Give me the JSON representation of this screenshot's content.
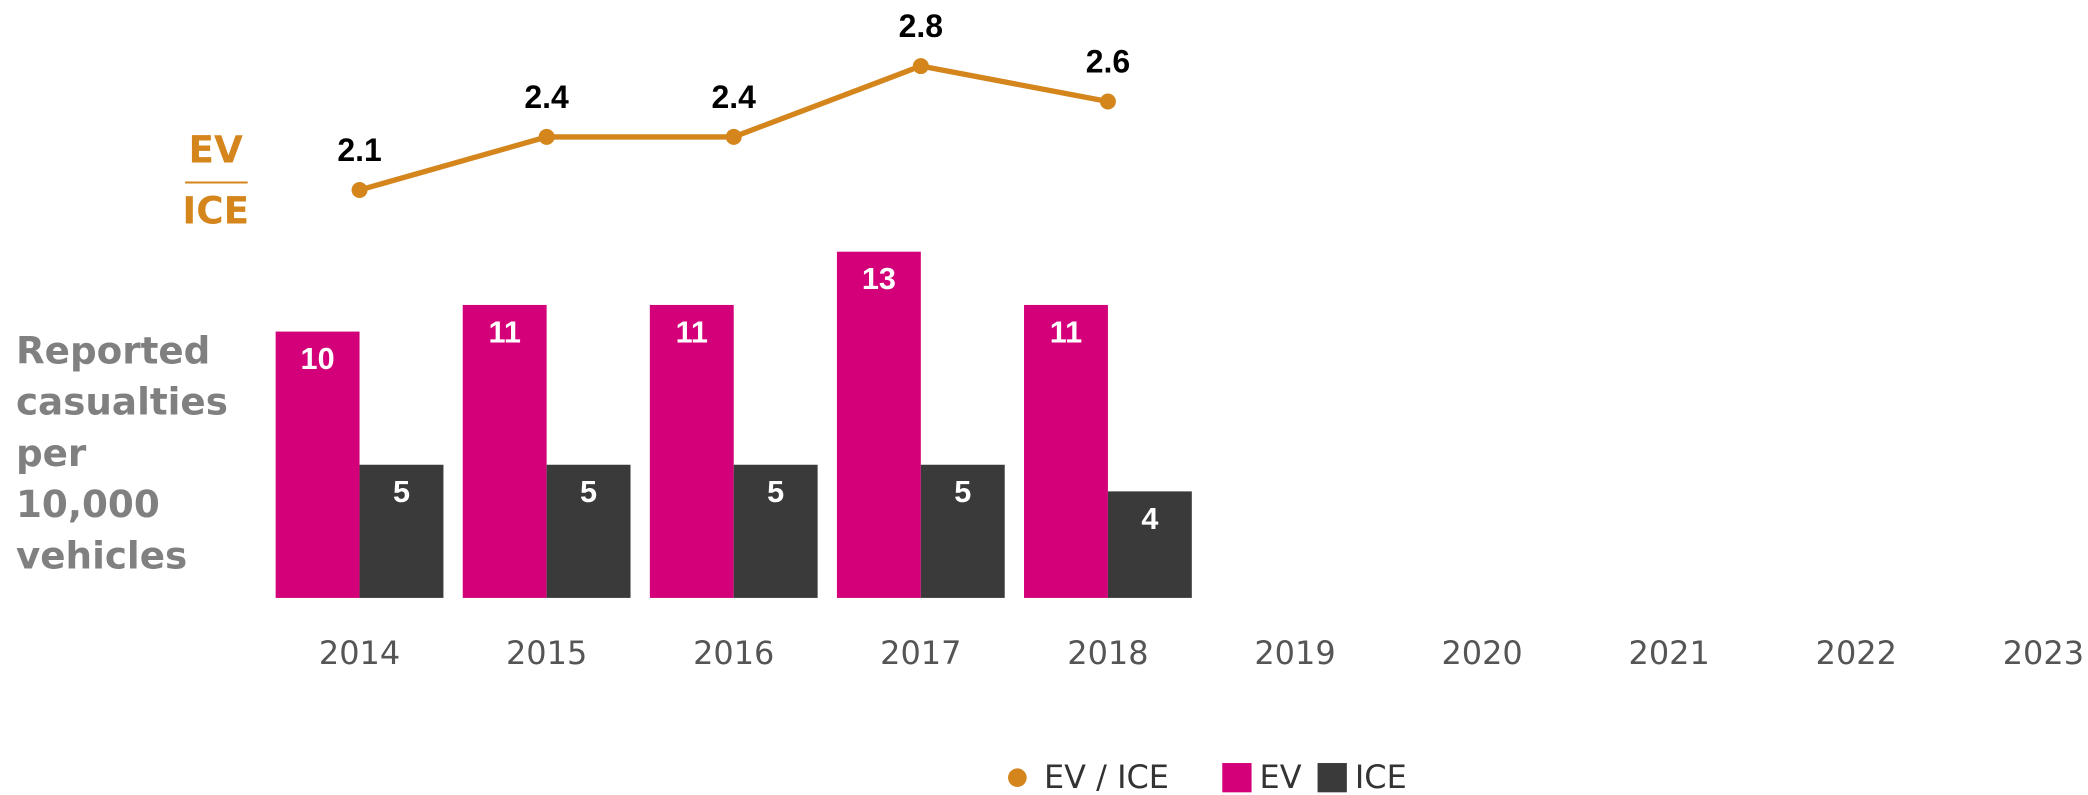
{
  "chart_data": {
    "type": "bar",
    "categories": [
      "2014",
      "2015",
      "2016",
      "2017",
      "2018",
      "2019",
      "2020",
      "2021",
      "2022",
      "2023"
    ],
    "series": [
      {
        "name": "EV / ICE",
        "type": "line",
        "color": "#d4851b",
        "values": [
          2.1,
          2.4,
          2.4,
          2.8,
          2.6,
          null,
          null,
          null,
          null,
          null
        ]
      },
      {
        "name": "EV",
        "type": "bar",
        "color": "#d4007a",
        "values": [
          10,
          11,
          11,
          13,
          11,
          null,
          null,
          null,
          null,
          null
        ]
      },
      {
        "name": "ICE",
        "type": "bar",
        "color": "#3a3a3a",
        "values": [
          5,
          5,
          5,
          5,
          4,
          null,
          null,
          null,
          null,
          null
        ]
      }
    ],
    "line_axis_label": [
      "EV",
      "ICE"
    ],
    "y_label": [
      "Reported",
      "casualties",
      "per",
      "10,000",
      "vehicles"
    ],
    "legend": "bottom"
  }
}
